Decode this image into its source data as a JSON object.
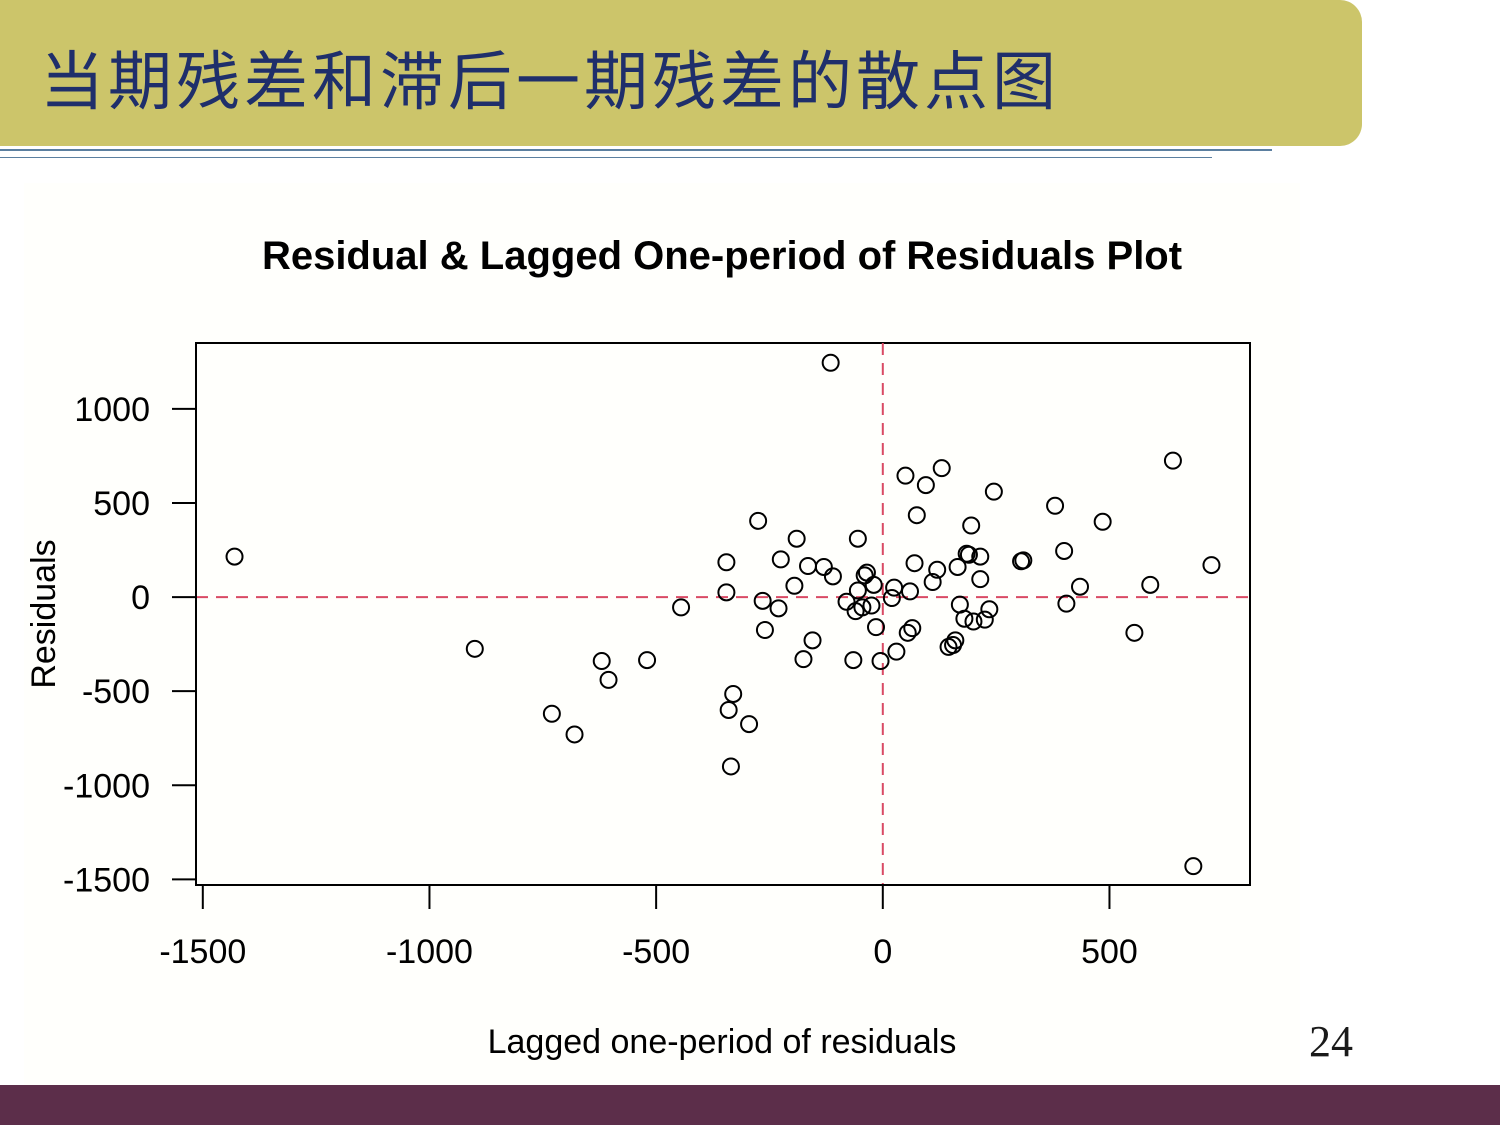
{
  "slide": {
    "title": "当期残差和滞后一期残差的散点图",
    "page_number": "24",
    "colors": {
      "title_band": "#ccc56a",
      "title_text": "#1f2f6b",
      "rule": "#5b7fa0",
      "bottom_band": "#5c2e4a",
      "reference_line": "#d94a64"
    }
  },
  "chart_data": {
    "type": "scatter",
    "title": "Residual & Lagged One-period of Residuals Plot",
    "xlabel": "Lagged one-period of residuals",
    "ylabel": "Residuals",
    "xlim": [
      -1515,
      810
    ],
    "ylim": [
      -1530,
      1350
    ],
    "xticks": [
      -1500,
      -1000,
      -500,
      0,
      500
    ],
    "yticks": [
      -1500,
      -1000,
      -500,
      0,
      500,
      1000
    ],
    "reference_lines": {
      "x": 0,
      "y": 0,
      "style": "dashed"
    },
    "grid": false,
    "marker": "open-circle",
    "points": [
      {
        "x": -1430,
        "y": 215
      },
      {
        "x": -900,
        "y": -275
      },
      {
        "x": -730,
        "y": -620
      },
      {
        "x": -680,
        "y": -730
      },
      {
        "x": -620,
        "y": -340
      },
      {
        "x": -605,
        "y": -440
      },
      {
        "x": -520,
        "y": -335
      },
      {
        "x": -445,
        "y": -55
      },
      {
        "x": -345,
        "y": 185
      },
      {
        "x": -345,
        "y": 25
      },
      {
        "x": -340,
        "y": -600
      },
      {
        "x": -335,
        "y": -900
      },
      {
        "x": -330,
        "y": -515
      },
      {
        "x": -295,
        "y": -675
      },
      {
        "x": -275,
        "y": 405
      },
      {
        "x": -265,
        "y": -20
      },
      {
        "x": -260,
        "y": -175
      },
      {
        "x": -230,
        "y": -60
      },
      {
        "x": -225,
        "y": 200
      },
      {
        "x": -195,
        "y": 60
      },
      {
        "x": -190,
        "y": 310
      },
      {
        "x": -175,
        "y": -330
      },
      {
        "x": -165,
        "y": 165
      },
      {
        "x": -155,
        "y": -230
      },
      {
        "x": -130,
        "y": 160
      },
      {
        "x": -115,
        "y": 1245
      },
      {
        "x": -110,
        "y": 110
      },
      {
        "x": -80,
        "y": -25
      },
      {
        "x": -65,
        "y": -335
      },
      {
        "x": -60,
        "y": -75
      },
      {
        "x": -55,
        "y": 35
      },
      {
        "x": -55,
        "y": 310
      },
      {
        "x": -45,
        "y": -55
      },
      {
        "x": -40,
        "y": 115
      },
      {
        "x": -35,
        "y": 130
      },
      {
        "x": -25,
        "y": -45
      },
      {
        "x": -20,
        "y": 65
      },
      {
        "x": -15,
        "y": -160
      },
      {
        "x": -5,
        "y": -340
      },
      {
        "x": 20,
        "y": -5
      },
      {
        "x": 25,
        "y": 50
      },
      {
        "x": 30,
        "y": -290
      },
      {
        "x": 50,
        "y": 645
      },
      {
        "x": 55,
        "y": -190
      },
      {
        "x": 60,
        "y": 30
      },
      {
        "x": 65,
        "y": -165
      },
      {
        "x": 70,
        "y": 180
      },
      {
        "x": 75,
        "y": 435
      },
      {
        "x": 95,
        "y": 595
      },
      {
        "x": 110,
        "y": 80
      },
      {
        "x": 120,
        "y": 145
      },
      {
        "x": 130,
        "y": 685
      },
      {
        "x": 145,
        "y": -265
      },
      {
        "x": 155,
        "y": -255
      },
      {
        "x": 160,
        "y": -230
      },
      {
        "x": 165,
        "y": 160
      },
      {
        "x": 170,
        "y": -40
      },
      {
        "x": 180,
        "y": -115
      },
      {
        "x": 185,
        "y": 230
      },
      {
        "x": 190,
        "y": 225
      },
      {
        "x": 195,
        "y": 380
      },
      {
        "x": 200,
        "y": -130
      },
      {
        "x": 215,
        "y": 95
      },
      {
        "x": 215,
        "y": 215
      },
      {
        "x": 225,
        "y": -120
      },
      {
        "x": 235,
        "y": -65
      },
      {
        "x": 245,
        "y": 560
      },
      {
        "x": 305,
        "y": 190
      },
      {
        "x": 310,
        "y": 195
      },
      {
        "x": 380,
        "y": 485
      },
      {
        "x": 400,
        "y": 245
      },
      {
        "x": 405,
        "y": -35
      },
      {
        "x": 435,
        "y": 55
      },
      {
        "x": 485,
        "y": 400
      },
      {
        "x": 555,
        "y": -190
      },
      {
        "x": 590,
        "y": 65
      },
      {
        "x": 640,
        "y": 725
      },
      {
        "x": 685,
        "y": -1430
      },
      {
        "x": 725,
        "y": 170
      }
    ]
  }
}
